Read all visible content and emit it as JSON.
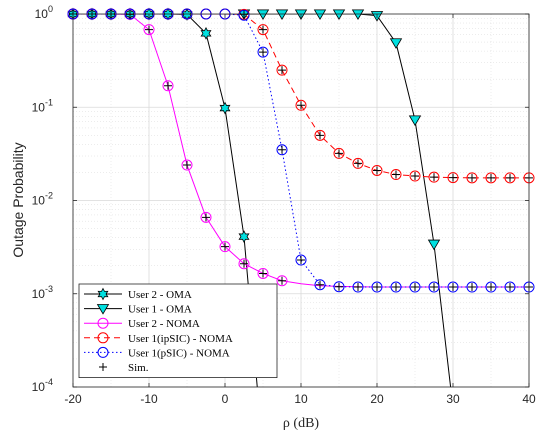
{
  "chart_data": {
    "type": "line",
    "title": "",
    "xlabel": "ρ (dB)",
    "ylabel": "Outage Probability",
    "xlim": [
      -20,
      40
    ],
    "ylim_log10": [
      -4,
      0
    ],
    "yscale": "log",
    "grid": true,
    "legend_position": "bottom-left",
    "x_ticks": [
      -20,
      -10,
      0,
      10,
      20,
      30,
      40
    ],
    "x_tick_labels": [
      "-20",
      "-10",
      "0",
      "10",
      "20",
      "30",
      "40"
    ],
    "y_ticks": [
      {
        "exp": -4,
        "base": "10",
        "sup": "-4"
      },
      {
        "exp": -3,
        "base": "10",
        "sup": "-3"
      },
      {
        "exp": -2,
        "base": "10",
        "sup": "-2"
      },
      {
        "exp": -1,
        "base": "10",
        "sup": "-1"
      },
      {
        "exp": 0,
        "base": "10",
        "sup": "0"
      }
    ],
    "series": [
      {
        "name": "User 2 - OMA",
        "color": "#000000",
        "marker_fill": "#00e0e0",
        "marker": "hexagram",
        "dash": "",
        "x": [
          -20,
          -17.5,
          -15,
          -12.5,
          -10,
          -7.5,
          -5,
          -2.5,
          0,
          2.5,
          5
        ],
        "y": [
          1,
          1,
          1,
          1,
          1,
          1,
          0.99,
          0.62,
          0.098,
          0.0041,
          2e-05
        ],
        "marker_x": [
          -20,
          -17.5,
          -15,
          -12.5,
          -10,
          -7.5,
          -5,
          -2.5,
          0,
          2.5
        ]
      },
      {
        "name": "User 1 - OMA",
        "color": "#000000",
        "marker_fill": "#00e0e0",
        "marker": "triangle-down",
        "dash": "",
        "x": [
          -20,
          -17.5,
          -15,
          -12.5,
          -10,
          -7.5,
          -5,
          -2.5,
          0,
          2.5,
          5,
          7.5,
          10,
          12.5,
          15,
          17.5,
          20,
          22.5,
          25,
          27.5,
          30
        ],
        "y": [
          1,
          1,
          1,
          1,
          1,
          1,
          1,
          1,
          1,
          1,
          1,
          1,
          1,
          1,
          1,
          1,
          0.96,
          0.49,
          0.073,
          0.0034,
          6e-05
        ],
        "marker_x": [
          2.5,
          5,
          7.5,
          10,
          12.5,
          15,
          17.5,
          20,
          22.5,
          25,
          27.5
        ]
      },
      {
        "name": "User 2 - NOMA",
        "color": "#ff00ff",
        "marker_fill": "none",
        "marker": "circle",
        "dash": "",
        "x": [
          -20,
          -17.5,
          -15,
          -12.5,
          -10,
          -7.5,
          -5,
          -2.5,
          0,
          2.5,
          5,
          7.5,
          10,
          12.5,
          15,
          17.5,
          20,
          22.5,
          25,
          27.5,
          30,
          32.5,
          35,
          37.5,
          40
        ],
        "y": [
          1,
          1,
          1,
          0.99,
          0.68,
          0.17,
          0.024,
          0.0066,
          0.0032,
          0.0021,
          0.00165,
          0.00138,
          0.00128,
          0.00122,
          0.0012,
          0.00119,
          0.00118,
          0.00118,
          0.00118,
          0.00118,
          0.00118,
          0.00118,
          0.00118,
          0.00118,
          0.00118
        ],
        "marker_x": [
          -20,
          -17.5,
          -15,
          -12.5,
          -10,
          -7.5,
          -5,
          -2.5,
          0,
          2.5,
          5,
          7.5
        ]
      },
      {
        "name": "User 1(ipSIC) - NOMA",
        "color": "#ff0000",
        "marker_fill": "none",
        "marker": "circle",
        "dash": "6,4",
        "x": [
          -20,
          -17.5,
          -15,
          -12.5,
          -10,
          -7.5,
          -5,
          -2.5,
          0,
          2.5,
          5,
          7.5,
          10,
          12.5,
          15,
          17.5,
          20,
          22.5,
          25,
          27.5,
          30,
          32.5,
          35,
          37.5,
          40
        ],
        "y": [
          1,
          1,
          1,
          1,
          1,
          1,
          1,
          1,
          1,
          0.99,
          0.68,
          0.25,
          0.105,
          0.05,
          0.032,
          0.025,
          0.021,
          0.019,
          0.0183,
          0.0178,
          0.0176,
          0.0175,
          0.0175,
          0.0175,
          0.0175
        ],
        "marker_x": [
          -20,
          -17.5,
          -15,
          -12.5,
          -10,
          -7.5,
          -5,
          -2.5,
          0,
          2.5,
          5,
          7.5,
          10,
          12.5,
          15,
          17.5,
          20,
          22.5,
          25,
          27.5,
          30,
          32.5,
          35,
          37.5,
          40
        ]
      },
      {
        "name": "User 1(pSIC) - NOMA",
        "color": "#0000ff",
        "marker_fill": "none",
        "marker": "circle",
        "dash": "1.5,2.5",
        "x": [
          -20,
          -17.5,
          -15,
          -12.5,
          -10,
          -7.5,
          -5,
          -2.5,
          0,
          2.5,
          5,
          7.5,
          10,
          12.5,
          15,
          17.5,
          20,
          22.5,
          25,
          27.5,
          30,
          32.5,
          35,
          37.5,
          40
        ],
        "y": [
          1,
          1,
          1,
          1,
          1,
          1,
          1,
          1,
          1,
          0.97,
          0.39,
          0.035,
          0.0023,
          0.00125,
          0.00119,
          0.00118,
          0.00118,
          0.00118,
          0.00118,
          0.00118,
          0.00118,
          0.00118,
          0.00118,
          0.00118,
          0.00118
        ],
        "marker_x": [
          -20,
          -17.5,
          -15,
          -12.5,
          -10,
          -7.5,
          -5,
          -2.5,
          0,
          2.5,
          5,
          7.5,
          10,
          12.5,
          15,
          17.5,
          20,
          22.5,
          25,
          27.5,
          30,
          32.5,
          35,
          37.5,
          40
        ]
      }
    ],
    "sim": {
      "name": "Sim.",
      "color": "#000000",
      "marker": "plus",
      "points": [
        {
          "x": -20,
          "y": 1
        },
        {
          "x": -17.5,
          "y": 1
        },
        {
          "x": -15,
          "y": 1
        },
        {
          "x": -12.5,
          "y": 0.99
        },
        {
          "x": -10,
          "y": 0.68
        },
        {
          "x": -7.5,
          "y": 0.17
        },
        {
          "x": -5,
          "y": 0.024
        },
        {
          "x": -2.5,
          "y": 0.0066
        },
        {
          "x": 0,
          "y": 0.0032
        },
        {
          "x": 2.5,
          "y": 0.0021
        },
        {
          "x": 5,
          "y": 0.00165
        },
        {
          "x": 7.5,
          "y": 0.00138
        },
        {
          "x": 2.5,
          "y": 0.99
        },
        {
          "x": 5,
          "y": 0.68
        },
        {
          "x": 7.5,
          "y": 0.25
        },
        {
          "x": 10,
          "y": 0.105
        },
        {
          "x": 12.5,
          "y": 0.05
        },
        {
          "x": 15,
          "y": 0.032
        },
        {
          "x": 17.5,
          "y": 0.025
        },
        {
          "x": 20,
          "y": 0.021
        },
        {
          "x": 22.5,
          "y": 0.019
        },
        {
          "x": 25,
          "y": 0.0183
        },
        {
          "x": 27.5,
          "y": 0.0178
        },
        {
          "x": 30,
          "y": 0.0176
        },
        {
          "x": 32.5,
          "y": 0.0175
        },
        {
          "x": 35,
          "y": 0.0175
        },
        {
          "x": 37.5,
          "y": 0.0175
        },
        {
          "x": 40,
          "y": 0.0175
        },
        {
          "x": 5,
          "y": 0.39
        },
        {
          "x": 7.5,
          "y": 0.035
        },
        {
          "x": 10,
          "y": 0.0023
        },
        {
          "x": 12.5,
          "y": 0.00125
        },
        {
          "x": 15,
          "y": 0.00119
        },
        {
          "x": 17.5,
          "y": 0.00118
        },
        {
          "x": 20,
          "y": 0.00118
        },
        {
          "x": 22.5,
          "y": 0.00118
        },
        {
          "x": 25,
          "y": 0.00118
        },
        {
          "x": 27.5,
          "y": 0.00118
        },
        {
          "x": 30,
          "y": 0.00118
        },
        {
          "x": 32.5,
          "y": 0.00118
        },
        {
          "x": 35,
          "y": 0.00118
        },
        {
          "x": 37.5,
          "y": 0.00118
        },
        {
          "x": 40,
          "y": 0.00118
        }
      ]
    }
  }
}
